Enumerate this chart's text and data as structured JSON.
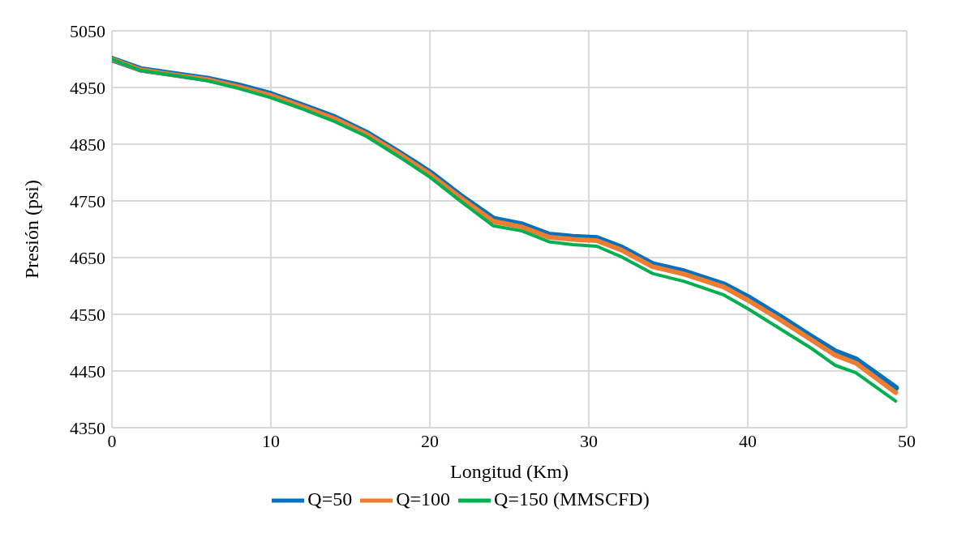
{
  "chart_data": {
    "type": "line",
    "xlabel": "Longitud (Km)",
    "ylabel": "Presión (psi)",
    "x": [
      0,
      1.8,
      4,
      6,
      8,
      10,
      12,
      14,
      16,
      18,
      20,
      22,
      24,
      25.8,
      27.5,
      29,
      30.5,
      32,
      34,
      36,
      38.5,
      40,
      42,
      44,
      45.5,
      46.8,
      49.3
    ],
    "series": [
      {
        "name": "Q=50",
        "color": "#0070c0",
        "values": [
          5000,
          4982,
          4973,
          4965,
          4953,
          4938,
          4918,
          4897,
          4870,
          4836,
          4800,
          4757,
          4718,
          4708,
          4690,
          4686,
          4684,
          4668,
          4638,
          4625,
          4602,
          4580,
          4546,
          4510,
          4484,
          4470,
          4420
        ]
      },
      {
        "name": "Q=100",
        "color": "#ed7d31",
        "values": [
          5000,
          4981,
          4972,
          4964,
          4951,
          4936,
          4916,
          4895,
          4868,
          4834,
          4797,
          4754,
          4714,
          4704,
          4686,
          4682,
          4680,
          4664,
          4634,
          4621,
          4598,
          4575,
          4541,
          4505,
          4478,
          4464,
          4412
        ]
      },
      {
        "name": "Q=150 (MMSCFD)",
        "color": "#00b050",
        "values": [
          5000,
          4980,
          4971,
          4962,
          4948,
          4932,
          4912,
          4890,
          4864,
          4829,
          4792,
          4748,
          4706,
          4697,
          4678,
          4673,
          4670,
          4652,
          4622,
          4608,
          4584,
          4560,
          4525,
          4490,
          4460,
          4447,
          4397
        ]
      }
    ],
    "xlim": [
      0,
      50
    ],
    "xticks": [
      0,
      10,
      20,
      30,
      40,
      50
    ],
    "ylim": [
      4350,
      5050
    ],
    "yticks": [
      4350,
      4450,
      4550,
      4650,
      4750,
      4850,
      4950,
      5050
    ],
    "grid": true,
    "legend": "bottom",
    "marker": "none",
    "line_style": "solid"
  }
}
